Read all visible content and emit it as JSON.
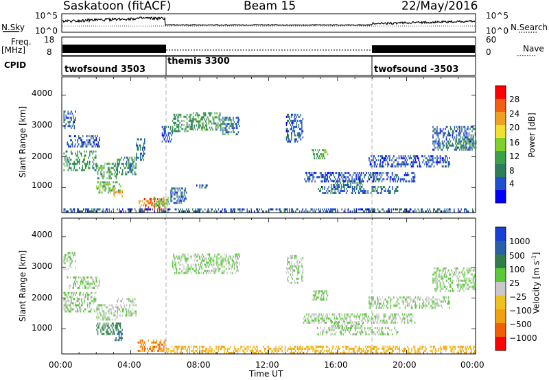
{
  "header": {
    "title": "Saskatoon (fitACF)",
    "beam": "Beam 15",
    "date": "22/May/2016"
  },
  "left_labels": {
    "nsky": "N.Sky",
    "freq": "Freq.",
    "freq_unit": "[MHz]",
    "cpid": "CPID"
  },
  "right_labels": {
    "nsearch": "N.Search",
    "nave": "Nave"
  },
  "noise_axis": {
    "left_ticks": [
      "10^5",
      "10^0"
    ],
    "right_ticks": [
      "10^5",
      "10^0"
    ]
  },
  "freq_axis": {
    "left_ticks": [
      "18",
      "8"
    ],
    "right_ticks": [
      "60",
      "0"
    ]
  },
  "cpid_segments": [
    {
      "label": "twofsound 3503",
      "start_hour": 0
    },
    {
      "label": "themis 3300",
      "start_hour": 6
    },
    {
      "label": "twofsound -3503",
      "start_hour": 18
    }
  ],
  "colors": {
    "power_scale": [
      "#0000ff",
      "#1f4fd1",
      "#2e7d5a",
      "#3aa04a",
      "#7fd02a",
      "#f0e030",
      "#f0a020",
      "#f06010",
      "#ff0000"
    ],
    "velocity_scale": [
      "#1a3fd6",
      "#2a5fa8",
      "#2f7d4a",
      "#5ac83a",
      "#c8c8c8",
      "#f0c020",
      "#f0a010",
      "#f06000",
      "#ff0000"
    ]
  },
  "chart_data": [
    {
      "type": "heatmap",
      "name": "Power",
      "xlabel": "",
      "ylabel": "Slant Range [km]",
      "xlim": [
        0,
        24
      ],
      "ylim": [
        180,
        4600
      ],
      "yticks": [
        "1000",
        "2000",
        "3000",
        "4000"
      ],
      "colorbar": {
        "label": "Power [dB]",
        "ticks": [
          "4",
          "8",
          "12",
          "16",
          "20",
          "24",
          "28"
        ],
        "range": [
          0,
          30
        ]
      },
      "regions": [
        {
          "x0": 0.1,
          "x1": 2.0,
          "r0": 1550,
          "r1": 2200,
          "level": 10
        },
        {
          "x0": 2.0,
          "x1": 3.2,
          "r0": 1300,
          "r1": 1800,
          "level": 11
        },
        {
          "x0": 3.2,
          "x1": 4.3,
          "r0": 1400,
          "r1": 2000,
          "level": 9
        },
        {
          "x0": 4.3,
          "x1": 4.8,
          "r0": 1900,
          "r1": 2600,
          "level": 7
        },
        {
          "x0": 0.1,
          "x1": 0.8,
          "r0": 2900,
          "r1": 3500,
          "level": 6
        },
        {
          "x0": 0.3,
          "x1": 2.2,
          "r0": 2300,
          "r1": 2700,
          "level": 6
        },
        {
          "x0": 2.0,
          "x1": 3.4,
          "r0": 850,
          "r1": 1200,
          "level": 13
        },
        {
          "x0": 3.0,
          "x1": 3.5,
          "r0": 700,
          "r1": 950,
          "level": 22
        },
        {
          "x0": 4.4,
          "x1": 6.0,
          "r0": 250,
          "r1": 650,
          "level": 24
        },
        {
          "x0": 5.3,
          "x1": 6.2,
          "r0": 400,
          "r1": 700,
          "level": 14
        },
        {
          "x0": 5.8,
          "x1": 6.4,
          "r0": 2500,
          "r1": 3000,
          "level": 6
        },
        {
          "x0": 6.4,
          "x1": 7.6,
          "r0": 2800,
          "r1": 3400,
          "level": 10
        },
        {
          "x0": 7.6,
          "x1": 9.2,
          "r0": 2900,
          "r1": 3450,
          "level": 11
        },
        {
          "x0": 9.2,
          "x1": 10.3,
          "r0": 2700,
          "r1": 3300,
          "level": 8
        },
        {
          "x0": 6.3,
          "x1": 7.2,
          "r0": 500,
          "r1": 1000,
          "level": 6
        },
        {
          "x0": 7.8,
          "x1": 8.4,
          "r0": 1000,
          "r1": 1100,
          "level": 6
        },
        {
          "x0": 13.0,
          "x1": 14.0,
          "r0": 2500,
          "r1": 3400,
          "level": 6
        },
        {
          "x0": 14.5,
          "x1": 15.4,
          "r0": 1950,
          "r1": 2250,
          "level": 12
        },
        {
          "x0": 15.6,
          "x1": 17.4,
          "r0": 1000,
          "r1": 1250,
          "level": 9
        },
        {
          "x0": 14.8,
          "x1": 19.5,
          "r0": 800,
          "r1": 1050,
          "level": 7
        },
        {
          "x0": 14.0,
          "x1": 20.5,
          "r0": 1200,
          "r1": 1500,
          "level": 5
        },
        {
          "x0": 17.8,
          "x1": 22.5,
          "r0": 1700,
          "r1": 2050,
          "level": 5
        },
        {
          "x0": 21.5,
          "x1": 24.0,
          "r0": 2200,
          "r1": 3000,
          "level": 6
        },
        {
          "x0": 22.8,
          "x1": 24.0,
          "r0": 2300,
          "r1": 2600,
          "level": 11
        },
        {
          "x0": 0.1,
          "x1": 24.0,
          "r0": 190,
          "r1": 320,
          "level": 6
        }
      ]
    },
    {
      "type": "heatmap",
      "name": "Velocity",
      "xlabel": "Time UT",
      "ylabel": "Slant Range [km]",
      "xlim": [
        0,
        24
      ],
      "ylim": [
        180,
        4600
      ],
      "xticks": [
        "00:00",
        "04:00",
        "08:00",
        "12:00",
        "16:00",
        "20:00",
        "00:00"
      ],
      "yticks": [
        "1000",
        "2000",
        "3000",
        "4000"
      ],
      "colorbar": {
        "label": "Velocity [m s",
        "label_exponent": "-1",
        "label_close": "]",
        "ticks": [
          "1000",
          "500",
          "100",
          "25",
          "−25",
          "−100",
          "−500",
          "−1000"
        ]
      },
      "regions": [
        {
          "x0": 0.1,
          "x1": 2.0,
          "r0": 1550,
          "r1": 2200,
          "level": 25
        },
        {
          "x0": 2.0,
          "x1": 3.2,
          "r0": 1300,
          "r1": 1800,
          "level": 25
        },
        {
          "x0": 3.2,
          "x1": 4.3,
          "r0": 1400,
          "r1": 2000,
          "level": 25
        },
        {
          "x0": 0.3,
          "x1": 2.2,
          "r0": 2300,
          "r1": 2700,
          "level": 25
        },
        {
          "x0": 0.1,
          "x1": 0.8,
          "r0": 2900,
          "r1": 3500,
          "level": 25
        },
        {
          "x0": 2.0,
          "x1": 3.4,
          "r0": 850,
          "r1": 1200,
          "level": 100
        },
        {
          "x0": 3.0,
          "x1": 3.5,
          "r0": 600,
          "r1": 1000,
          "level": 300
        },
        {
          "x0": 4.4,
          "x1": 6.0,
          "r0": 250,
          "r1": 650,
          "level": -300
        },
        {
          "x0": 6.4,
          "x1": 10.3,
          "r0": 2800,
          "r1": 3450,
          "level": 25
        },
        {
          "x0": 6.0,
          "x1": 24.0,
          "r0": 190,
          "r1": 450,
          "level": -60
        },
        {
          "x0": 13.0,
          "x1": 14.0,
          "r0": 2500,
          "r1": 3400,
          "level": 25
        },
        {
          "x0": 14.5,
          "x1": 15.4,
          "r0": 1950,
          "r1": 2250,
          "level": 25
        },
        {
          "x0": 15.6,
          "x1": 17.4,
          "r0": 1000,
          "r1": 1250,
          "level": 25
        },
        {
          "x0": 14.8,
          "x1": 19.5,
          "r0": 800,
          "r1": 1050,
          "level": 25
        },
        {
          "x0": 14.0,
          "x1": 20.5,
          "r0": 1200,
          "r1": 1500,
          "level": 25
        },
        {
          "x0": 17.8,
          "x1": 22.5,
          "r0": 1700,
          "r1": 2050,
          "level": 25
        },
        {
          "x0": 21.5,
          "x1": 24.0,
          "r0": 2200,
          "r1": 3000,
          "level": 25
        }
      ]
    }
  ]
}
